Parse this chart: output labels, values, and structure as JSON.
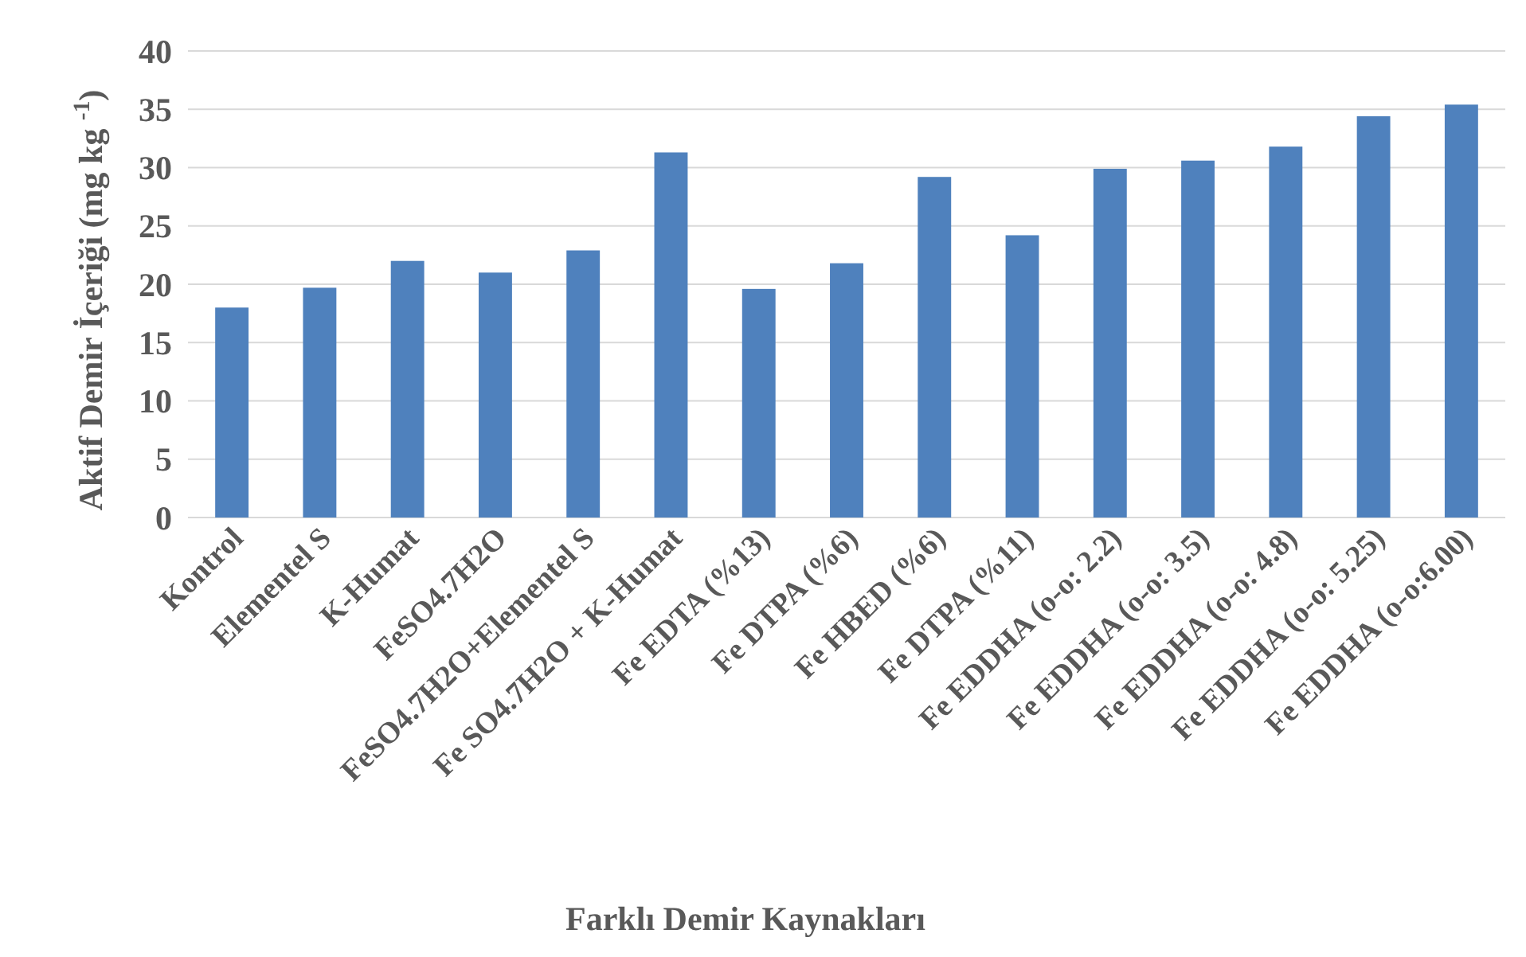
{
  "chart_data": {
    "type": "bar",
    "xlabel": "Farklı Demir Kaynakları",
    "ylabel": "Aktif Demir İçeriği (mg kg $^{-1}$)",
    "categories": [
      "Kontrol",
      "Elementel S",
      "K-Humat",
      "FeSO4.7H2O",
      "FeSO4.7H2O+Elementel S",
      "Fe SO4.7H2O + K-Humat",
      "Fe EDTA (%13)",
      "Fe DTPA (%6)",
      "Fe HBED (%6)",
      "Fe DTPA (%11)",
      "Fe EDDHA (o-o: 2.2)",
      "Fe EDDHA (o-o: 3.5)",
      "Fe EDDHA (o-o: 4.8)",
      "Fe EDDHA (o-o: 5.25)",
      "Fe EDDHA (o-o:6.00)"
    ],
    "values": [
      18.0,
      19.7,
      22.0,
      21.0,
      22.9,
      31.3,
      19.6,
      21.8,
      29.2,
      24.2,
      29.9,
      30.6,
      31.8,
      34.4,
      35.4
    ],
    "color": "#4f81bd",
    "ylim": [
      0,
      40
    ],
    "yticks": [
      0,
      5,
      10,
      15,
      20,
      25,
      30,
      35,
      40
    ],
    "grid": "y"
  }
}
